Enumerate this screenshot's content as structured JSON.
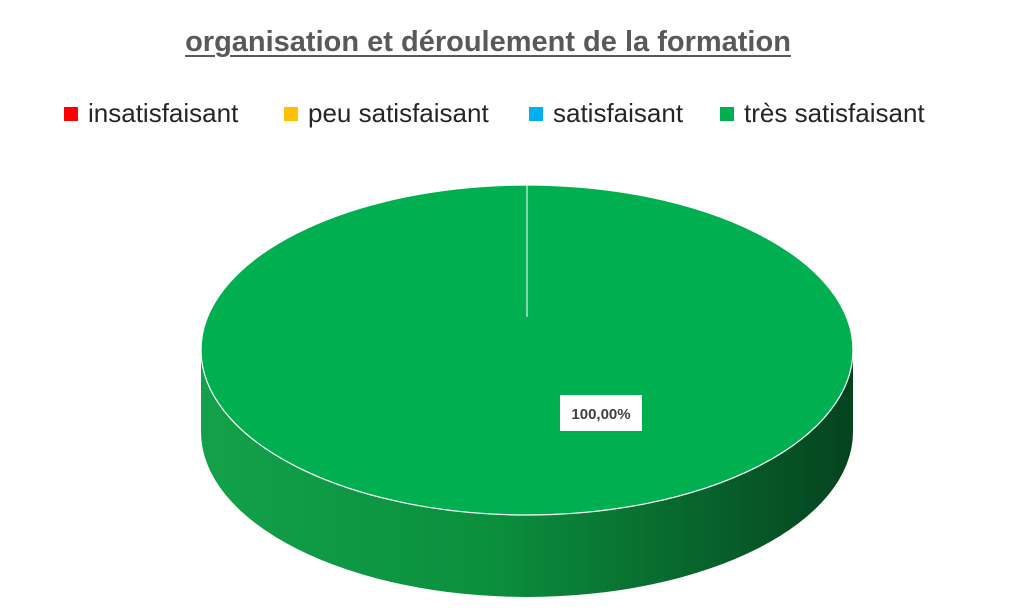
{
  "chart_data": {
    "type": "pie",
    "title": "organisation et déroulement de la formation",
    "categories": [
      "insatisfaisant",
      "peu satisfaisant",
      "satisfaisant",
      "très satisfaisant"
    ],
    "values": [
      0,
      0,
      0,
      100
    ],
    "data_labels": [
      "100,00%"
    ],
    "colors": [
      "#ff0000",
      "#ffc000",
      "#00b0f0",
      "#00b050"
    ],
    "legend_position": "top",
    "style": "3d"
  }
}
